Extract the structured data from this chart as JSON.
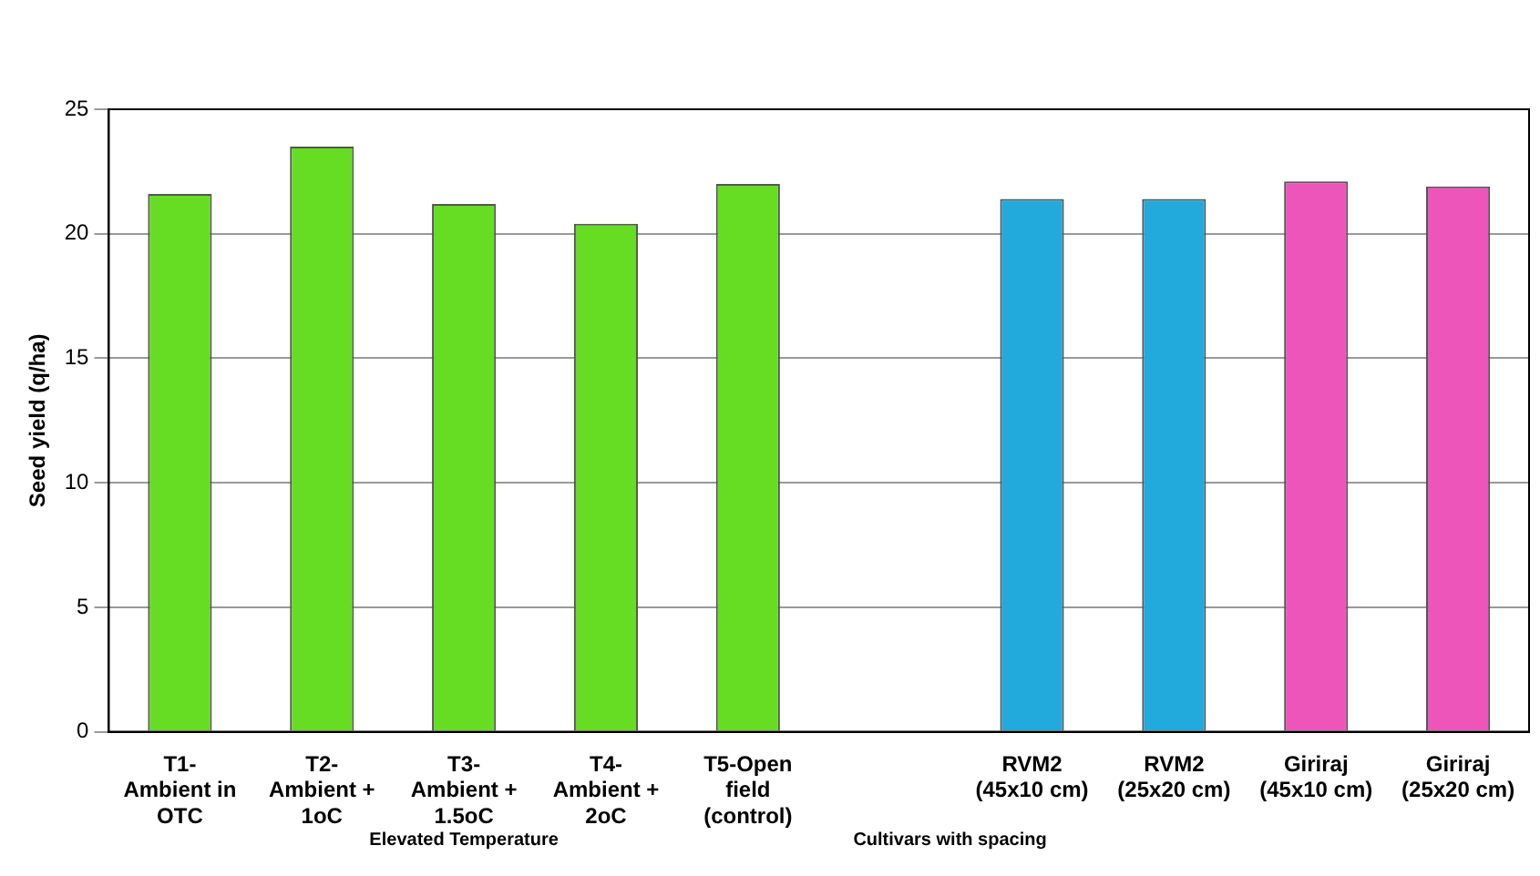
{
  "chart_data": {
    "type": "bar",
    "ylabel": "Seed yield (q/ha)",
    "categories": [
      "T1-\nAmbient in\nOTC",
      "T2-\nAmbient +\n1oC",
      "T3-\nAmbient +\n1.5oC",
      "T4-\nAmbient +\n2oC",
      "T5-Open\nfield\n(control)",
      null,
      "RVM2\n(45x10 cm)",
      "RVM2\n(25x20 cm)",
      "Giriraj\n(45x10 cm)",
      "Giriraj\n(25x20 cm)"
    ],
    "values": [
      21.6,
      23.5,
      21.2,
      20.4,
      22.0,
      null,
      21.4,
      21.4,
      22.1,
      21.9
    ],
    "colors": [
      "#66dd22",
      "#66dd22",
      "#66dd22",
      "#66dd22",
      "#66dd22",
      "#66dd22",
      "#22aadd",
      "#22aadd",
      "#ee55bb",
      "#ee55bb"
    ],
    "ylim": [
      0,
      25
    ],
    "yticks": [
      0,
      5,
      10,
      15,
      20,
      25
    ],
    "grid": "y",
    "legend": false,
    "annotations": [
      "Elevated Temperature",
      "Cultivars with spacing"
    ]
  }
}
